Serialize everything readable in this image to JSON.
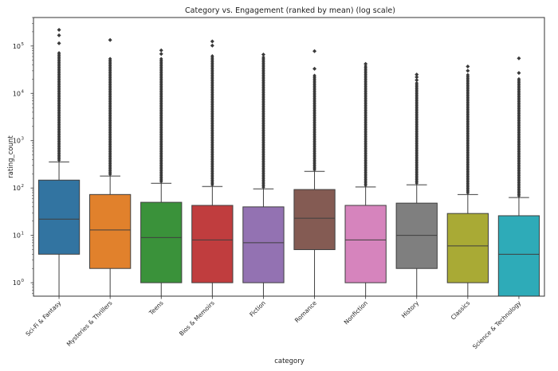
{
  "chart_data": {
    "type": "box",
    "title": "Category vs. Engagement (ranked by mean) (log scale)",
    "xlabel": "category",
    "ylabel": "rating_count",
    "yscale": "log",
    "ylim": [
      0.52,
      400000
    ],
    "y_ticks": [
      {
        "value": 1,
        "label": "10",
        "exp": "0"
      },
      {
        "value": 10,
        "label": "10",
        "exp": "1"
      },
      {
        "value": 100,
        "label": "10",
        "exp": "2"
      },
      {
        "value": 1000,
        "label": "10",
        "exp": "3"
      },
      {
        "value": 10000,
        "label": "10",
        "exp": "4"
      },
      {
        "value": 100000,
        "label": "10",
        "exp": "5"
      }
    ],
    "grid": false,
    "categories": [
      "Sci-Fi & Fantasy",
      "Mysteries & Thrillers",
      "Teens",
      "Bios & Memoirs",
      "Fiction",
      "Romance",
      "Nonfiction",
      "History",
      "Classics",
      "Science & Technology"
    ],
    "colors": [
      "#3274a1",
      "#e1812c",
      "#3a923a",
      "#c03d3e",
      "#9372b2",
      "#845b53",
      "#d684bd",
      "#7f7f7f",
      "#a9aa35",
      "#2eabb8"
    ],
    "boxes": [
      {
        "whislo": 0,
        "q1": 4,
        "med": 22,
        "q3": 147,
        "whishi": 357,
        "fliers_dense_max": 75000,
        "fliers_extra": [
          114000,
          168000,
          220000
        ]
      },
      {
        "whislo": 0,
        "q1": 2,
        "med": 13,
        "q3": 73,
        "whishi": 179,
        "fliers_dense_max": 55000,
        "fliers_extra": [
          134000
        ]
      },
      {
        "whislo": 0,
        "q1": 1,
        "med": 9,
        "q3": 50,
        "whishi": 126,
        "fliers_dense_max": 55000,
        "fliers_extra": [
          68000,
          81000
        ]
      },
      {
        "whislo": 0,
        "q1": 1,
        "med": 8,
        "q3": 43,
        "whishi": 108,
        "fliers_dense_max": 62000,
        "fliers_extra": [
          102000,
          125000
        ]
      },
      {
        "whislo": 0,
        "q1": 1,
        "med": 7,
        "q3": 40,
        "whishi": 96,
        "fliers_dense_max": 60000,
        "fliers_extra": [
          66000
        ]
      },
      {
        "whislo": 0,
        "q1": 5,
        "med": 23,
        "q3": 93,
        "whishi": 225,
        "fliers_dense_max": 25000,
        "fliers_extra": [
          33000,
          78000
        ]
      },
      {
        "whislo": 0,
        "q1": 1,
        "med": 8,
        "q3": 43,
        "whishi": 105,
        "fliers_dense_max": 38000,
        "fliers_extra": [
          42000
        ]
      },
      {
        "whislo": 0,
        "q1": 2,
        "med": 10,
        "q3": 48,
        "whishi": 117,
        "fliers_dense_max": 17000,
        "fliers_extra": [
          19000,
          22000,
          25000
        ]
      },
      {
        "whislo": 0,
        "q1": 1,
        "med": 6,
        "q3": 29,
        "whishi": 73,
        "fliers_dense_max": 25000,
        "fliers_extra": [
          30000,
          37000
        ]
      },
      {
        "whislo": 0,
        "q1": 0,
        "med": 4,
        "q3": 26,
        "whishi": 63,
        "fliers_dense_max": 21000,
        "fliers_extra": [
          27000,
          55000
        ]
      }
    ]
  }
}
